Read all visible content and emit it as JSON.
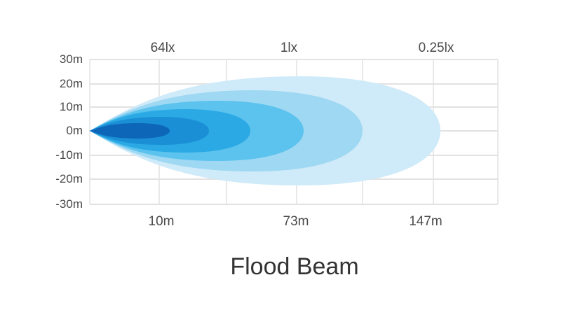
{
  "chart_data": {
    "type": "beam-pattern",
    "title": "Flood Beam",
    "y_ticks": [
      "30m",
      "20m",
      "10m",
      "0m",
      "-10m",
      "-20m",
      "-30m"
    ],
    "lux_labels": [
      "64lx",
      "1lx",
      "0.25lx"
    ],
    "distance_labels": [
      "10m",
      "73m",
      "147m"
    ],
    "zone_colors": [
      "#cfeaf8",
      "#9fd8f3",
      "#5cc3ee",
      "#2ba9e4",
      "#1a8fd6",
      "#0d66b8"
    ]
  }
}
